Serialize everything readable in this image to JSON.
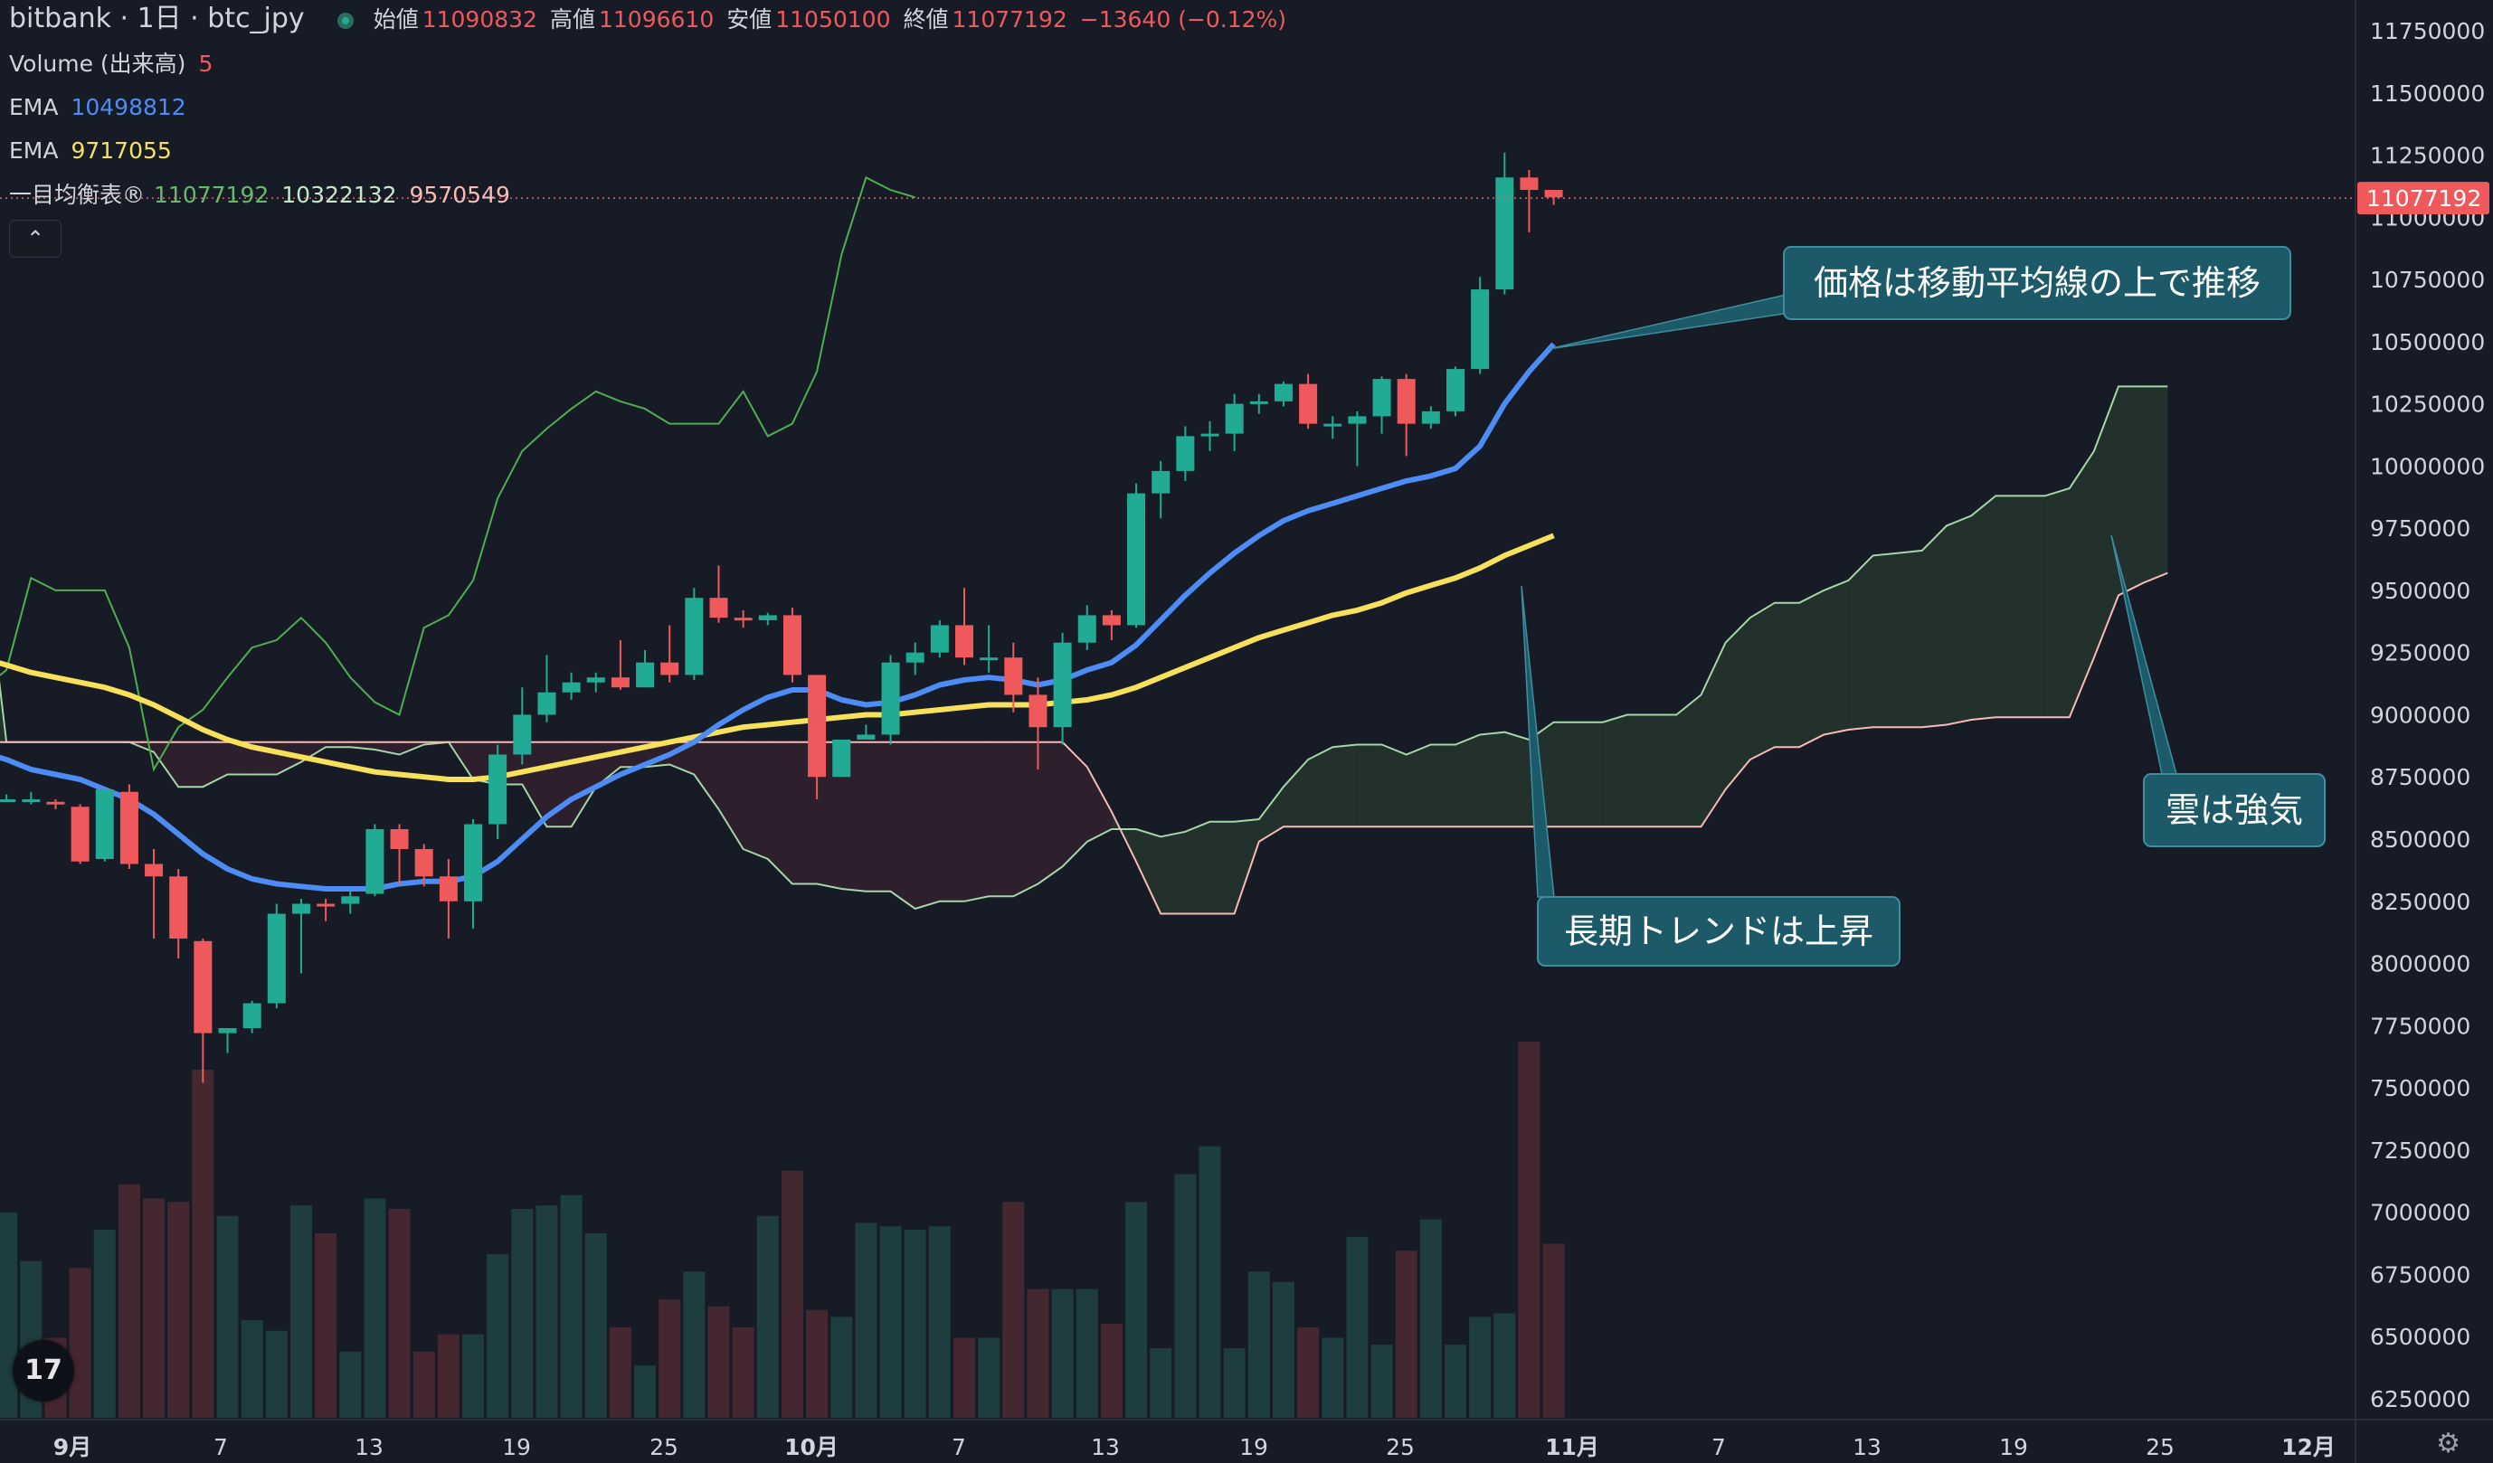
{
  "header": {
    "symbol": "bitbank · 1日 · btc_jpy",
    "open_label": "始値",
    "open": "11090832",
    "high_label": "高値",
    "high": "11096610",
    "low_label": "安値",
    "low": "11050100",
    "close_label": "終値",
    "close": "11077192",
    "change": "−13640 (−0.12%)"
  },
  "indicators": {
    "volume_label": "Volume (出来高)",
    "volume_value": "5",
    "ema1_label": "EMA",
    "ema1_value": "10498812",
    "ema2_label": "EMA",
    "ema2_value": "9717055",
    "ichimoku_label": "一目均衡表®",
    "ichi_a": "11077192",
    "ichi_b": "10322132",
    "ichi_c": "9570549"
  },
  "icons": {
    "collapse": "chevron-up-icon",
    "logo": "tradingview-logo-icon",
    "settings": "gear-icon"
  },
  "logo_text": "17",
  "collapse_glyph": "⌃",
  "gear_glyph": "⚙",
  "colors": {
    "background": "#171b26",
    "up": "#22ab94",
    "down": "#f0595b",
    "ema_fast": "#4d8cf5",
    "ema_slow": "#f7e15a",
    "span_a": "#a5d6a7",
    "span_b": "#f8bbb5",
    "chikou": "#4caf50",
    "annotation_bg": "#1c5a6a"
  },
  "chart_data": {
    "type": "candlestick",
    "yaxis": {
      "ticks": [
        11750000,
        11500000,
        11250000,
        11000000,
        10750000,
        10500000,
        10250000,
        10000000,
        9750000,
        9500000,
        9250000,
        9000000,
        8750000,
        8500000,
        8250000,
        8000000,
        7750000,
        7500000,
        7250000,
        7000000,
        6750000,
        6500000,
        6250000
      ],
      "range": [
        6170000,
        11880000
      ]
    },
    "xaxis": {
      "ticks": [
        "9月",
        "7",
        "13",
        "19",
        "25",
        "10月",
        "7",
        "13",
        "19",
        "25",
        "11月",
        "7",
        "13",
        "19",
        "25",
        "12月"
      ]
    },
    "last_price": 11077192,
    "candles": [
      [
        8660000,
        8680000,
        8600000,
        8560000
      ],
      [
        8660000,
        8680000,
        8660000,
        8650000
      ],
      [
        8650000,
        8690000,
        8660000,
        8640000
      ],
      [
        8650000,
        8660000,
        8640000,
        8620000
      ],
      [
        8630000,
        8640000,
        8410000,
        8400000
      ],
      [
        8420000,
        8690000,
        8700000,
        8410000
      ],
      [
        8690000,
        8720000,
        8400000,
        8380000
      ],
      [
        8400000,
        8460000,
        8350000,
        8100000
      ],
      [
        8350000,
        8380000,
        8100000,
        8020000
      ],
      [
        8090000,
        8100000,
        7720000,
        7520000
      ],
      [
        7720000,
        7740000,
        7740000,
        7640000
      ],
      [
        7740000,
        7850000,
        7840000,
        7720000
      ],
      [
        7840000,
        8240000,
        8200000,
        7820000
      ],
      [
        8200000,
        8260000,
        8240000,
        7960000
      ],
      [
        8240000,
        8260000,
        8230000,
        8170000
      ],
      [
        8240000,
        8290000,
        8270000,
        8200000
      ],
      [
        8280000,
        8560000,
        8540000,
        8270000
      ],
      [
        8540000,
        8560000,
        8460000,
        8320000
      ],
      [
        8460000,
        8480000,
        8350000,
        8310000
      ],
      [
        8350000,
        8420000,
        8250000,
        8100000
      ],
      [
        8250000,
        8580000,
        8560000,
        8140000
      ],
      [
        8560000,
        8880000,
        8840000,
        8500000
      ],
      [
        8840000,
        9110000,
        9000000,
        8800000
      ],
      [
        9000000,
        9240000,
        9090000,
        8970000
      ],
      [
        9090000,
        9170000,
        9130000,
        9060000
      ],
      [
        9130000,
        9170000,
        9150000,
        9090000
      ],
      [
        9150000,
        9300000,
        9110000,
        9100000
      ],
      [
        9110000,
        9260000,
        9210000,
        9110000
      ],
      [
        9210000,
        9360000,
        9160000,
        9130000
      ],
      [
        9160000,
        9510000,
        9470000,
        9140000
      ],
      [
        9470000,
        9600000,
        9390000,
        9370000
      ],
      [
        9390000,
        9420000,
        9380000,
        9350000
      ],
      [
        9380000,
        9410000,
        9400000,
        9360000
      ],
      [
        9400000,
        9430000,
        9160000,
        9130000
      ],
      [
        9160000,
        9160000,
        8750000,
        8660000
      ],
      [
        8750000,
        8900000,
        8900000,
        8770000
      ],
      [
        8900000,
        8960000,
        8920000,
        8900000
      ],
      [
        8920000,
        9240000,
        9210000,
        8880000
      ],
      [
        9210000,
        9290000,
        9250000,
        9160000
      ],
      [
        9250000,
        9380000,
        9360000,
        9230000
      ],
      [
        9360000,
        9510000,
        9230000,
        9200000
      ],
      [
        9230000,
        9360000,
        9230000,
        9170000
      ],
      [
        9230000,
        9290000,
        9080000,
        9010000
      ],
      [
        9080000,
        9150000,
        8950000,
        8780000
      ],
      [
        8950000,
        9330000,
        9290000,
        8880000
      ],
      [
        9290000,
        9440000,
        9400000,
        9260000
      ],
      [
        9400000,
        9420000,
        9360000,
        9300000
      ],
      [
        9360000,
        9930000,
        9890000,
        9350000
      ],
      [
        9890000,
        10020000,
        9980000,
        9790000
      ],
      [
        9980000,
        10160000,
        10120000,
        9940000
      ],
      [
        10120000,
        10180000,
        10130000,
        10060000
      ],
      [
        10130000,
        10290000,
        10250000,
        10060000
      ],
      [
        10250000,
        10290000,
        10260000,
        10210000
      ],
      [
        10260000,
        10340000,
        10330000,
        10240000
      ],
      [
        10330000,
        10370000,
        10170000,
        10150000
      ],
      [
        10170000,
        10200000,
        10170000,
        10110000
      ],
      [
        10170000,
        10220000,
        10200000,
        10000000
      ],
      [
        10200000,
        10360000,
        10350000,
        10130000
      ],
      [
        10350000,
        10370000,
        10170000,
        10040000
      ],
      [
        10170000,
        10240000,
        10220000,
        10150000
      ],
      [
        10220000,
        10400000,
        10390000,
        10200000
      ],
      [
        10390000,
        10760000,
        10710000,
        10370000
      ],
      [
        10710000,
        11260000,
        11160000,
        10690000
      ],
      [
        11160000,
        11190000,
        11110000,
        10940000
      ],
      [
        11110000,
        11100000,
        11080000,
        11050000
      ]
    ],
    "ema_fast": [
      8850000,
      8820000,
      8780000,
      8760000,
      8740000,
      8700000,
      8660000,
      8600000,
      8520000,
      8440000,
      8380000,
      8340000,
      8320000,
      8310000,
      8300000,
      8300000,
      8300000,
      8320000,
      8330000,
      8330000,
      8350000,
      8410000,
      8500000,
      8590000,
      8660000,
      8710000,
      8760000,
      8800000,
      8840000,
      8890000,
      8960000,
      9020000,
      9070000,
      9100000,
      9100000,
      9060000,
      9040000,
      9050000,
      9080000,
      9120000,
      9140000,
      9150000,
      9140000,
      9120000,
      9140000,
      9180000,
      9210000,
      9280000,
      9380000,
      9480000,
      9570000,
      9650000,
      9720000,
      9780000,
      9820000,
      9850000,
      9880000,
      9910000,
      9940000,
      9960000,
      9990000,
      10080000,
      10250000,
      10380000,
      10490000
    ],
    "ema_slow": [
      9230000,
      9200000,
      9170000,
      9150000,
      9130000,
      9110000,
      9080000,
      9040000,
      8990000,
      8940000,
      8900000,
      8870000,
      8850000,
      8830000,
      8810000,
      8790000,
      8770000,
      8760000,
      8750000,
      8740000,
      8740000,
      8750000,
      8770000,
      8790000,
      8810000,
      8830000,
      8850000,
      8870000,
      8890000,
      8910000,
      8930000,
      8950000,
      8960000,
      8970000,
      8980000,
      8990000,
      9000000,
      9000000,
      9010000,
      9020000,
      9030000,
      9040000,
      9040000,
      9040000,
      9050000,
      9060000,
      9080000,
      9110000,
      9150000,
      9190000,
      9230000,
      9270000,
      9310000,
      9340000,
      9370000,
      9400000,
      9420000,
      9450000,
      9490000,
      9520000,
      9550000,
      9590000,
      9640000,
      9680000,
      9720000
    ],
    "chikou": [
      9100000,
      9180000,
      9550000,
      9500000,
      9500000,
      9500000,
      9270000,
      8780000,
      8950000,
      9020000,
      9150000,
      9270000,
      9300000,
      9390000,
      9290000,
      9150000,
      9050000,
      9000000,
      9350000,
      9400000,
      9540000,
      9870000,
      10060000,
      10150000,
      10230000,
      10300000,
      10260000,
      10230000,
      10170000,
      10170000,
      10170000,
      10300000,
      10120000,
      10170000,
      10380000,
      10850000,
      11160000,
      11110000,
      11080000
    ],
    "span_a": [
      9720000,
      8890000,
      8890000,
      8890000,
      8890000,
      8890000,
      8890000,
      8850000,
      8710000,
      8710000,
      8760000,
      8760000,
      8760000,
      8810000,
      8870000,
      8870000,
      8860000,
      8840000,
      8880000,
      8890000,
      8740000,
      8720000,
      8720000,
      8550000,
      8550000,
      8710000,
      8790000,
      8790000,
      8800000,
      8760000,
      8620000,
      8460000,
      8420000,
      8320000,
      8320000,
      8300000,
      8290000,
      8290000,
      8220000,
      8250000,
      8250000,
      8270000,
      8270000,
      8320000,
      8390000,
      8490000,
      8540000,
      8540000,
      8510000,
      8530000,
      8570000,
      8570000,
      8580000,
      8710000,
      8820000,
      8870000,
      8880000,
      8880000,
      8840000,
      8880000,
      8880000,
      8920000,
      8930000,
      8900000,
      8970000,
      8970000,
      8970000,
      9000000,
      9000000,
      9000000,
      9080000,
      9290000,
      9390000,
      9450000,
      9450000,
      9500000,
      9540000,
      9640000,
      9650000,
      9660000,
      9760000,
      9800000,
      9880000,
      9880000,
      9880000,
      9910000,
      10060000,
      10320000,
      10320000,
      10320000
    ],
    "span_b": [
      8890000,
      8890000,
      8890000,
      8890000,
      8890000,
      8890000,
      8890000,
      8890000,
      8890000,
      8890000,
      8890000,
      8890000,
      8890000,
      8890000,
      8890000,
      8890000,
      8890000,
      8890000,
      8890000,
      8890000,
      8890000,
      8890000,
      8890000,
      8890000,
      8890000,
      8890000,
      8890000,
      8890000,
      8890000,
      8890000,
      8890000,
      8890000,
      8890000,
      8890000,
      8890000,
      8890000,
      8890000,
      8890000,
      8890000,
      8890000,
      8890000,
      8890000,
      8890000,
      8890000,
      8890000,
      8790000,
      8610000,
      8410000,
      8200000,
      8200000,
      8200000,
      8200000,
      8490000,
      8550000,
      8550000,
      8550000,
      8550000,
      8550000,
      8550000,
      8550000,
      8550000,
      8550000,
      8550000,
      8550000,
      8550000,
      8550000,
      8550000,
      8550000,
      8550000,
      8550000,
      8550000,
      8700000,
      8820000,
      8870000,
      8870000,
      8920000,
      8940000,
      8950000,
      8950000,
      8950000,
      8960000,
      8980000,
      8990000,
      8990000,
      8990000,
      8990000,
      9230000,
      9480000,
      9530000,
      9570000
    ],
    "volume": [
      0.52,
      0.59,
      0.45,
      0.23,
      0.43,
      0.54,
      0.67,
      0.63,
      0.62,
      1.0,
      0.58,
      0.28,
      0.25,
      0.61,
      0.53,
      0.19,
      0.63,
      0.6,
      0.19,
      0.24,
      0.24,
      0.47,
      0.6,
      0.61,
      0.64,
      0.53,
      0.26,
      0.15,
      0.34,
      0.42,
      0.32,
      0.26,
      0.58,
      0.71,
      0.31,
      0.29,
      0.56,
      0.55,
      0.54,
      0.55,
      0.23,
      0.23,
      0.62,
      0.37,
      0.37,
      0.37,
      0.27,
      0.62,
      0.2,
      0.7,
      0.78,
      0.2,
      0.42,
      0.39,
      0.26,
      0.23,
      0.52,
      0.21,
      0.48,
      0.57,
      0.21,
      0.29,
      0.3,
      1.08,
      0.5
    ],
    "annotations": [
      "価格は移動平均線の上で推移",
      "長期トレンドは上昇",
      "雲は強気"
    ]
  }
}
